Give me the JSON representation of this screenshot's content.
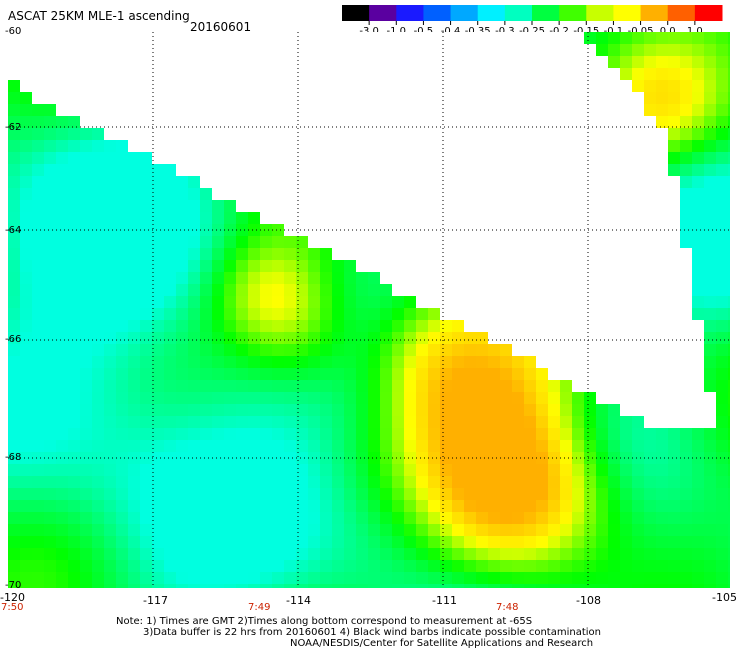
{
  "header": {
    "title": "ASCAT 25KM MLE-1 ascending",
    "date": "20160601"
  },
  "colorbar": {
    "tick_labels": [
      "-3.0",
      "-1.0",
      "-0.5",
      "-0.4",
      "-0.35",
      "-0.3",
      "-0.25",
      "-0.2",
      "-0.15",
      "-0.1",
      "-0.05",
      "0.0",
      "1.0"
    ],
    "colors": [
      "#000000",
      "#5a00a0",
      "#1a1aff",
      "#0060ff",
      "#00a8ff",
      "#00f0ff",
      "#00ffc0",
      "#00ff40",
      "#40ff00",
      "#c8ff00",
      "#ffff00",
      "#ffb000",
      "#ff6000",
      "#ff0000"
    ]
  },
  "map": {
    "lat_labels": [
      "-60",
      "-62",
      "-64",
      "-66",
      "-68",
      "-70"
    ],
    "lon_labels": [
      "-120",
      "-117",
      "-114",
      "-111",
      "-108",
      "-105"
    ],
    "time_labels": [
      "7:50",
      "7:49",
      "7:48"
    ],
    "palette": {
      "land_cyan": "#00ffe0",
      "green": "#00ff00",
      "yellow": "#ffff00",
      "orange": "#ffb000",
      "blue": "#0070ff",
      "no_data": "#ffffff"
    }
  },
  "notes": {
    "line1": "Note: 1) Times are GMT 2)Times along bottom correspond to measurement at -65S",
    "line2": "3)Data buffer is 22 hrs from 20160601 4) Black wind barbs indicate possible contamination",
    "line3": "NOAA/NESDIS/Center for Satellite Applications and Research"
  }
}
